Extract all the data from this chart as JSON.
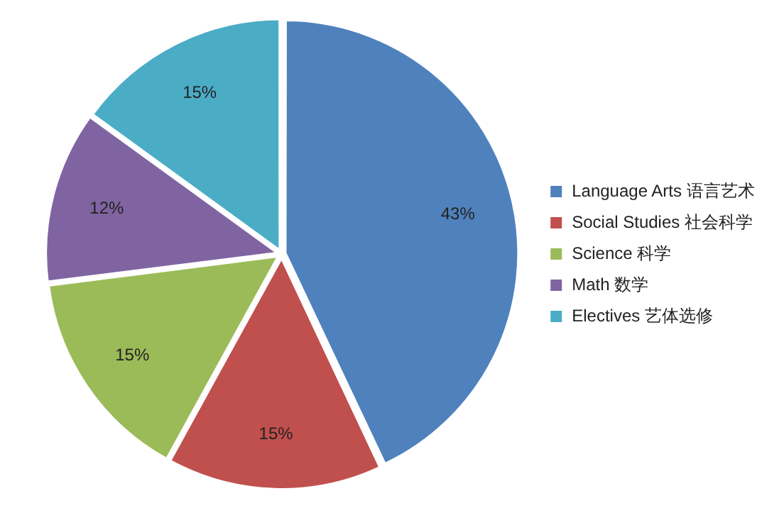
{
  "chart_data": {
    "type": "pie",
    "categories": [
      "Language Arts 语言艺术",
      "Social Studies 社会科学",
      "Science 科学",
      "Math 数学",
      "Electives 艺体选修"
    ],
    "values": [
      43,
      15,
      15,
      12,
      15
    ],
    "colors": [
      "#4f81bd",
      "#c0504d",
      "#9bbb59",
      "#8064a2",
      "#4bacc6"
    ],
    "value_labels": [
      "43%",
      "15%",
      "15%",
      "12%",
      "15%"
    ],
    "legend": "right"
  }
}
